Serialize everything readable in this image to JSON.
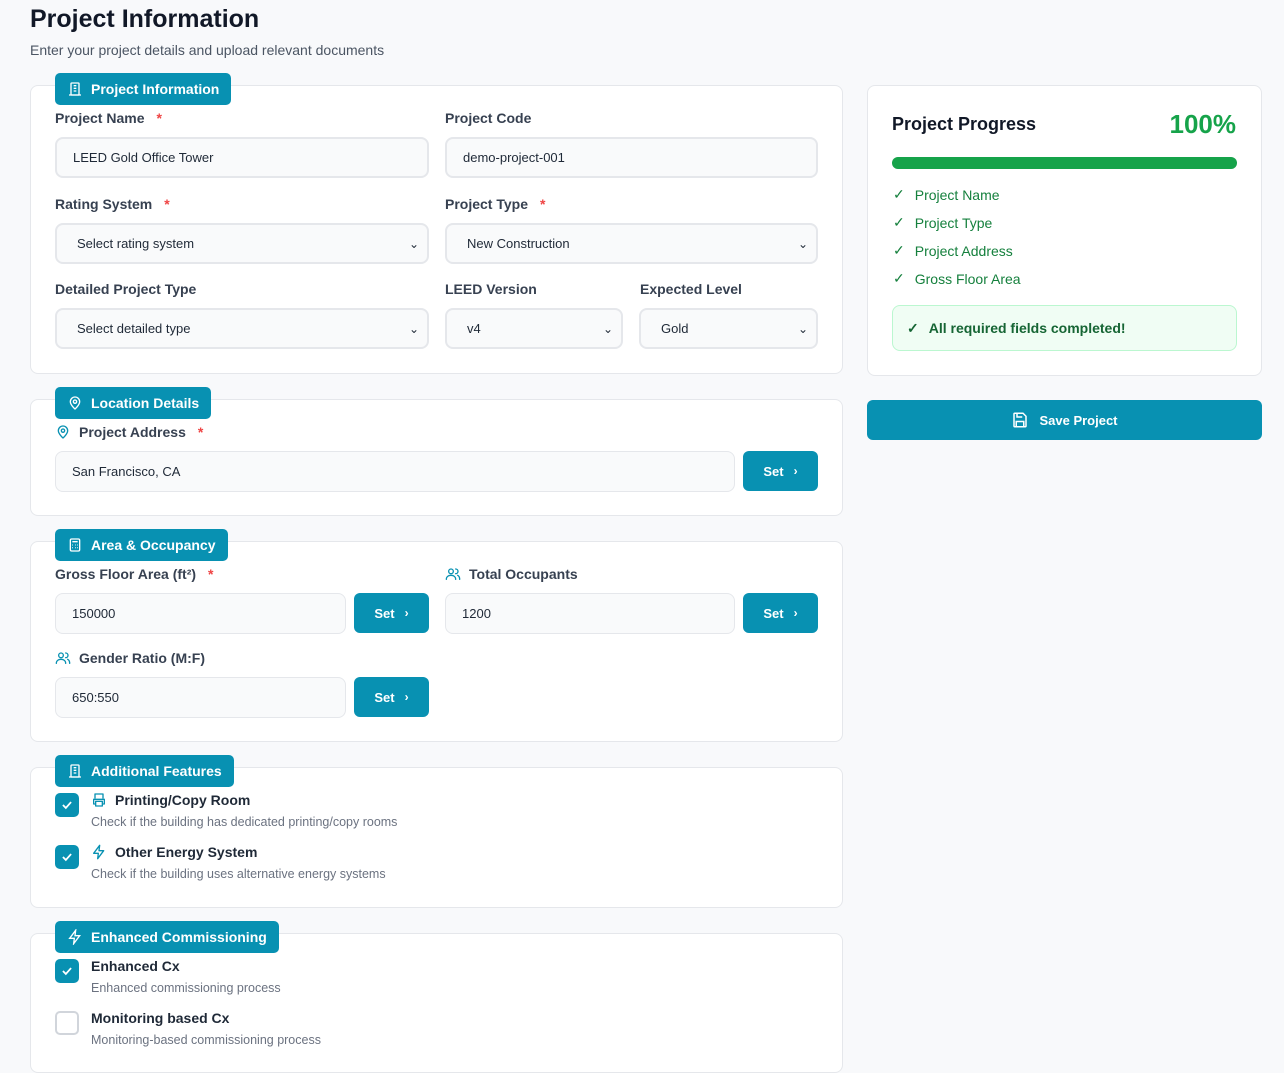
{
  "page": {
    "title": "Project Information",
    "subtitle": "Enter your project details and upload relevant documents"
  },
  "project_info": {
    "section": "Project Information",
    "name_label": "Project Name",
    "name_value": "LEED Gold Office Tower",
    "code_label": "Project Code",
    "code_value": "demo-project-001",
    "rating_label": "Rating System",
    "rating_value": "Select rating system",
    "type_label": "Project Type",
    "type_value": "New Construction",
    "detailed_label": "Detailed Project Type",
    "detailed_value": "Select detailed type",
    "version_label": "LEED Version",
    "version_value": "v4",
    "level_label": "Expected Level",
    "level_value": "Gold"
  },
  "location": {
    "section": "Location Details",
    "address_label": "Project Address",
    "address_value": "San Francisco, CA",
    "set": "Set"
  },
  "area": {
    "section": "Area & Occupancy",
    "gfa_label": "Gross Floor Area (ft²)",
    "gfa_value": "150000",
    "occ_label": "Total Occupants",
    "occ_value": "1200",
    "ratio_label": "Gender Ratio (M:F)",
    "ratio_value": "650:550",
    "set": "Set"
  },
  "features": {
    "section": "Additional Features",
    "items": [
      {
        "title": "Printing/Copy Room",
        "desc": "Check if the building has dedicated printing/copy rooms",
        "checked": true,
        "icon": "printer-icon"
      },
      {
        "title": "Other Energy System",
        "desc": "Check if the building uses alternative energy systems",
        "checked": true,
        "icon": "lightning-icon"
      }
    ]
  },
  "commissioning": {
    "section": "Enhanced Commissioning",
    "items": [
      {
        "title": "Enhanced Cx",
        "desc": "Enhanced commissioning process",
        "checked": true
      },
      {
        "title": "Monitoring based Cx",
        "desc": "Monitoring-based commissioning process",
        "checked": false
      }
    ]
  },
  "progress": {
    "title": "Project Progress",
    "percent_label": "100%",
    "percent": 100,
    "items": [
      "Project Name",
      "Project Type",
      "Project Address",
      "Gross Floor Area"
    ],
    "complete_msg": "All required fields completed!",
    "save": "Save Project"
  },
  "colors": {
    "accent": "#0891b2",
    "success": "#16a34a",
    "required": "#ef4444"
  }
}
